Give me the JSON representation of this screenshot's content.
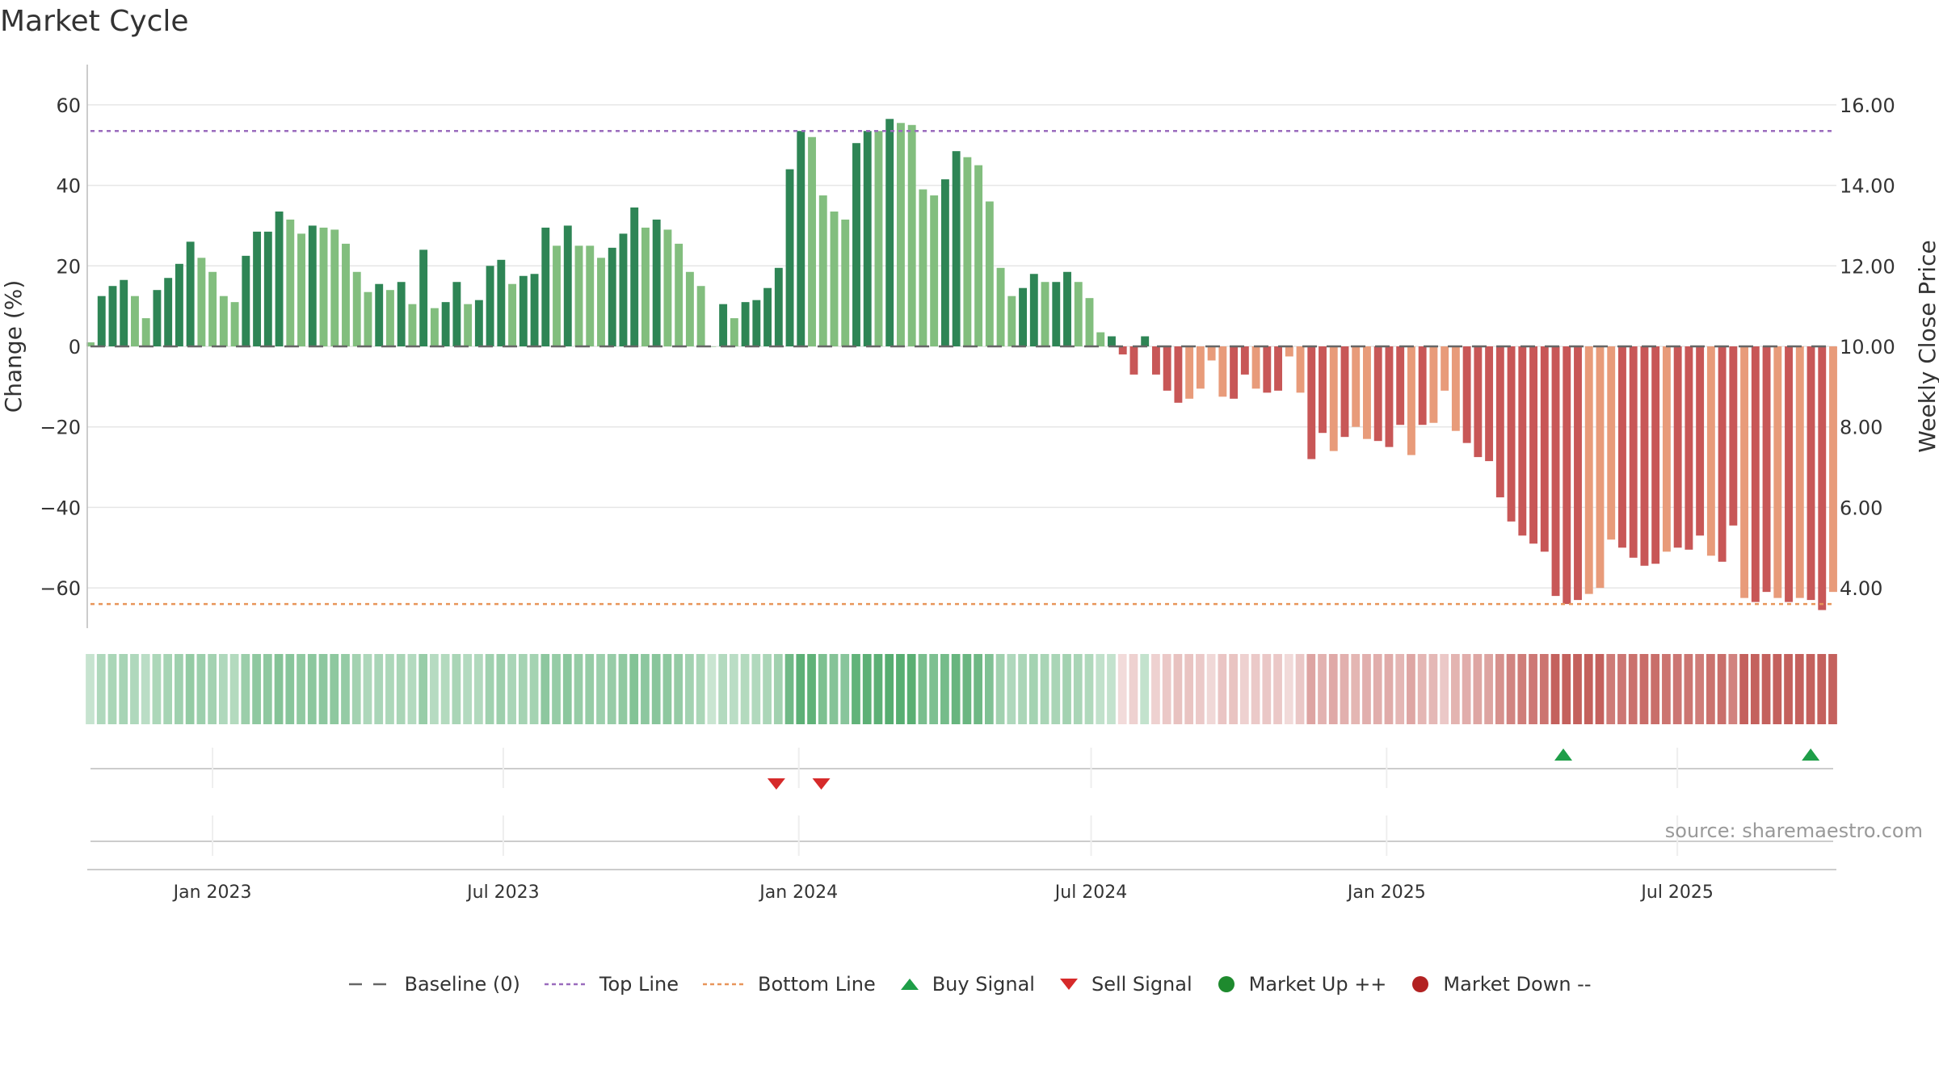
{
  "title": "Market Cycle",
  "source": "source: sharemaestro.com",
  "legend": [
    {
      "label": "Baseline (0)",
      "symbol": "dash",
      "color": "#666666"
    },
    {
      "label": "Top Line",
      "symbol": "dotted",
      "color": "#9a6bbd"
    },
    {
      "label": "Bottom Line",
      "symbol": "dotted",
      "color": "#e8955a"
    },
    {
      "label": "Buy Signal",
      "symbol": "triangle-up",
      "color": "#1e9e48"
    },
    {
      "label": "Sell Signal",
      "symbol": "triangle-down",
      "color": "#d62a2a"
    },
    {
      "label": "Market Up ++",
      "symbol": "circle",
      "color": "#1e8a2e"
    },
    {
      "label": "Market Down --",
      "symbol": "circle",
      "color": "#b22222"
    }
  ],
  "colors": {
    "up_dark": "#2e8555",
    "up_light": "#82be7e",
    "down_dark": "#c85757",
    "down_light": "#e89b7a",
    "grid": "#e6e6e6",
    "axis": "#bbbbbb"
  },
  "chart_data": {
    "type": "bar",
    "ylabel": "Change (%)",
    "y2label": "Weekly Close Price",
    "ylim": [
      -70,
      70
    ],
    "yticks": [
      60,
      40,
      20,
      0,
      -20,
      -40,
      -60
    ],
    "ytick_labels": [
      "60",
      "40",
      "20",
      "0",
      "−20",
      "−40",
      "−60"
    ],
    "y2lim": [
      3.0,
      17.0
    ],
    "y2ticks": [
      16,
      14,
      12,
      10,
      8,
      6,
      4
    ],
    "y2tick_labels": [
      "16.00",
      "14.00",
      "12.00",
      "10.00",
      "8.00",
      "6.00",
      "4.00"
    ],
    "top_line": 53.5,
    "bottom_line": -64.0,
    "x_start": "2022-10-17",
    "x_end": "2025-10-06",
    "xticks": [
      {
        "date": "2023-01-01",
        "label": "Jan 2023"
      },
      {
        "date": "2023-07-01",
        "label": "Jul 2023"
      },
      {
        "date": "2024-01-01",
        "label": "Jan 2024"
      },
      {
        "date": "2024-07-01",
        "label": "Jul 2024"
      },
      {
        "date": "2025-01-01",
        "label": "Jan 2025"
      },
      {
        "date": "2025-07-01",
        "label": "Jul 2025"
      }
    ],
    "values": [
      1,
      12.5,
      15,
      16.5,
      12.5,
      7,
      14,
      17,
      20.5,
      26,
      22,
      18.5,
      12.5,
      11,
      22.5,
      28.5,
      28.5,
      33.5,
      31.5,
      28,
      30,
      29.5,
      29,
      25.5,
      18.5,
      13.5,
      15.5,
      14,
      16,
      10.5,
      24,
      9.5,
      11,
      16,
      10.5,
      11.5,
      20,
      21.5,
      15.5,
      17.5,
      18,
      29.5,
      25,
      30,
      25,
      25,
      22,
      24.5,
      28,
      34.5,
      29.5,
      31.5,
      29,
      25.5,
      18.5,
      15,
      0,
      10.5,
      7,
      11,
      11.5,
      14.5,
      19.5,
      44,
      53.5,
      52,
      37.5,
      33.5,
      31.5,
      50.5,
      53.5,
      53.5,
      56.5,
      55.5,
      55,
      39,
      37.5,
      41.5,
      48.5,
      47,
      45,
      36,
      19.5,
      12.5,
      14.5,
      18,
      16,
      16,
      18.5,
      16,
      12,
      3.5,
      2.5,
      -2,
      -7,
      2.5,
      -7,
      -11,
      -14,
      -13,
      -10.5,
      -3.5,
      -12.5,
      -13,
      -7,
      -10.5,
      -11.5,
      -11,
      -2.5,
      -11.5,
      -28,
      -21.5,
      -26,
      -22.5,
      -20,
      -23,
      -23.5,
      -25,
      -19.5,
      -27,
      -19.5,
      -19,
      -11,
      -21,
      -24,
      -27.5,
      -28.5,
      -37.5,
      -43.5,
      -47,
      -49,
      -51,
      -62,
      -64,
      -63,
      -61.5,
      -60,
      -48,
      -50,
      -52.5,
      -54.5,
      -54,
      -51,
      -50,
      -50.5,
      -47,
      -52,
      -53.5,
      -44.5,
      -62.5,
      -63.5,
      -61,
      -62.5,
      -63.5,
      -62.5,
      -63,
      -65.5,
      -61
    ],
    "shade": [
      0,
      1,
      1,
      1,
      0,
      0,
      1,
      1,
      1,
      1,
      0,
      0,
      0,
      0,
      1,
      1,
      1,
      1,
      0,
      0,
      1,
      0,
      0,
      0,
      0,
      0,
      1,
      0,
      1,
      0,
      1,
      0,
      1,
      1,
      0,
      1,
      1,
      1,
      0,
      1,
      1,
      1,
      0,
      1,
      0,
      0,
      0,
      1,
      1,
      1,
      0,
      1,
      0,
      0,
      0,
      0,
      0,
      1,
      0,
      1,
      1,
      1,
      1,
      1,
      1,
      0,
      0,
      0,
      0,
      1,
      1,
      0,
      1,
      0,
      0,
      0,
      0,
      1,
      1,
      0,
      0,
      0,
      0,
      0,
      1,
      1,
      0,
      1,
      1,
      0,
      0,
      0,
      1,
      1,
      1,
      1,
      1,
      1,
      1,
      0,
      0,
      0,
      0,
      1,
      1,
      0,
      1,
      1,
      0,
      0,
      1,
      1,
      0,
      1,
      0,
      0,
      1,
      1,
      1,
      0,
      1,
      0,
      0,
      0,
      1,
      1,
      1,
      1,
      1,
      1,
      1,
      1,
      1,
      1,
      1,
      0,
      0,
      0,
      1,
      1,
      1,
      1,
      0,
      1,
      1,
      1,
      0,
      1,
      1,
      0,
      1,
      1,
      0,
      1,
      0,
      1,
      1,
      0
    ]
  }
}
